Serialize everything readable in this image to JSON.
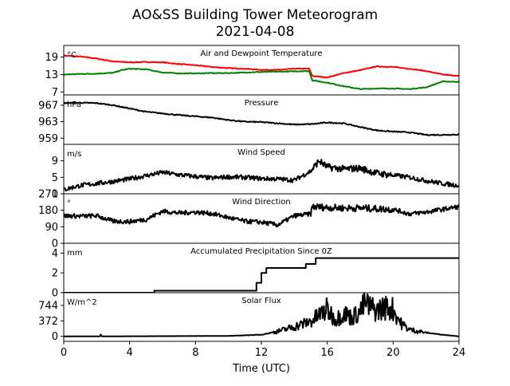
{
  "title": "AO&SS Building Tower Meteorogram",
  "subtitle": "2021-04-08",
  "chart_data": {
    "type": "line",
    "xlabel": "Time (UTC)",
    "xlim": [
      0,
      24
    ],
    "xticks": [
      "0",
      "4",
      "8",
      "12",
      "16",
      "20",
      "24"
    ],
    "panels": [
      {
        "title": "Air and Dewpoint Temperature",
        "unit": "°C",
        "ylim": [
          6,
          23
        ],
        "yticks": [
          "19",
          "13",
          "7"
        ],
        "series": [
          {
            "color": "#ff0000",
            "x": [
              0,
              1,
              2,
              3,
              4,
              5,
              6,
              7,
              8,
              9,
              10,
              11,
              12,
              13,
              14,
              14.9,
              15.1,
              16,
              17,
              18,
              19,
              20,
              21,
              22,
              23,
              24
            ],
            "y": [
              19.5,
              19.2,
              18.5,
              17.5,
              17.2,
              17.3,
              17.2,
              16.6,
              16.2,
              15.6,
              15.2,
              15.0,
              14.6,
              14.6,
              15.0,
              15.0,
              12.5,
              12.0,
              13.5,
              14.5,
              15.8,
              15.6,
              15.0,
              14.2,
              13.0,
              12.5
            ]
          },
          {
            "color": "#008000",
            "x": [
              0,
              1,
              2,
              3,
              3.5,
              4,
              5,
              6,
              7,
              8,
              9,
              10,
              11,
              12,
              13,
              14,
              14.9,
              15.1,
              16,
              17,
              18,
              19,
              20,
              21,
              22,
              23,
              24
            ],
            "y": [
              13.0,
              13.2,
              13.3,
              13.6,
              14.5,
              15.0,
              14.8,
              13.7,
              13.4,
              13.4,
              13.5,
              13.5,
              13.7,
              13.9,
              14.0,
              14.1,
              14.2,
              11.0,
              10.2,
              9.0,
              8.0,
              8.2,
              8.2,
              8.0,
              8.6,
              10.6,
              10.5
            ]
          }
        ]
      },
      {
        "title": "Pressure",
        "unit": "hPa",
        "ylim": [
          957.5,
          969.5
        ],
        "yticks": [
          "967",
          "963",
          "959"
        ],
        "series": [
          {
            "color": "#000000",
            "x": [
              0,
              1,
              2,
              3,
              4,
              5,
              6,
              7,
              8,
              9,
              10,
              11,
              12,
              13,
              14,
              15,
              16,
              17,
              18,
              19,
              20,
              21,
              22,
              23,
              24
            ],
            "y": [
              967.5,
              967.6,
              967.5,
              967.0,
              966.2,
              965.4,
              965.0,
              964.6,
              964.3,
              964.0,
              963.4,
              963.0,
              962.9,
              962.6,
              962.3,
              962.4,
              962.8,
              962.6,
              961.7,
              960.9,
              960.6,
              960.4,
              959.8,
              959.8,
              959.9
            ]
          }
        ]
      },
      {
        "title": "Wind Speed",
        "unit": "m/s",
        "ylim": [
          1,
          13
        ],
        "yticks": [
          "9",
          "5",
          "1"
        ],
        "series": [
          {
            "color": "#000000",
            "noise": true,
            "x": [
              0,
              1,
              2,
              3,
              4,
              5,
              6,
              7,
              8,
              9,
              10,
              11,
              12,
              13,
              14,
              15,
              15.5,
              16,
              17,
              18,
              19,
              20,
              21,
              22,
              23,
              24
            ],
            "y": [
              2.0,
              3.0,
              3.5,
              4.0,
              4.6,
              5.4,
              6.2,
              5.6,
              5.2,
              4.8,
              5.1,
              5.0,
              4.7,
              4.6,
              4.3,
              6.5,
              9.0,
              7.5,
              7.0,
              7.2,
              6.0,
              5.5,
              5.0,
              4.2,
              3.5,
              3.0
            ]
          }
        ]
      },
      {
        "title": "Wind Direction",
        "unit": "°",
        "ylim": [
          0,
          270
        ],
        "yticks": [
          "270",
          "180",
          "90",
          "0"
        ],
        "series": [
          {
            "color": "#000000",
            "noise": true,
            "x": [
              0,
              1,
              2,
              3,
              4,
              5,
              6,
              7,
              8,
              9,
              10,
              11,
              12,
              13,
              14,
              15,
              15.1,
              16,
              17,
              18,
              19,
              20,
              21,
              22,
              23,
              24
            ],
            "y": [
              150,
              148,
              150,
              120,
              118,
              130,
              175,
              165,
              170,
              162,
              140,
              120,
              115,
              100,
              150,
              160,
              200,
              195,
              192,
              192,
              188,
              185,
              160,
              170,
              185,
              200
            ]
          }
        ]
      },
      {
        "title": "Accumulated Precipitation Since 0Z",
        "unit": "mm",
        "ylim": [
          0,
          5
        ],
        "yticks": [
          "4",
          "2",
          "0"
        ],
        "series": [
          {
            "color": "#000000",
            "step": true,
            "x": [
              0,
              5.5,
              5.5,
              11.7,
              11.7,
              12.0,
              12.0,
              12.3,
              12.3,
              14.7,
              14.7,
              15.3,
              15.3,
              24
            ],
            "y": [
              0,
              0,
              0.2,
              0.2,
              1.0,
              1.0,
              2.0,
              2.0,
              2.5,
              2.5,
              2.9,
              2.9,
              3.5,
              3.5
            ]
          }
        ]
      },
      {
        "title": "Solar Flux",
        "unit": "W/m^2",
        "ylim": [
          -120,
          1050
        ],
        "yticks": [
          "744",
          "372",
          "0"
        ],
        "series": [
          {
            "color": "#000000",
            "spiky": true,
            "x": [
              0,
              2.2,
              2.25,
              2.3,
              10,
              12,
              13,
              14,
              15,
              16,
              16.5,
              17,
              17.5,
              18,
              18.3,
              18.6,
              19,
              19.5,
              20,
              20.5,
              21,
              22,
              23,
              24
            ],
            "y": [
              0,
              0,
              60,
              0,
              10,
              40,
              120,
              230,
              360,
              650,
              400,
              560,
              450,
              600,
              800,
              700,
              620,
              700,
              650,
              300,
              160,
              90,
              40,
              0
            ]
          }
        ]
      }
    ]
  }
}
